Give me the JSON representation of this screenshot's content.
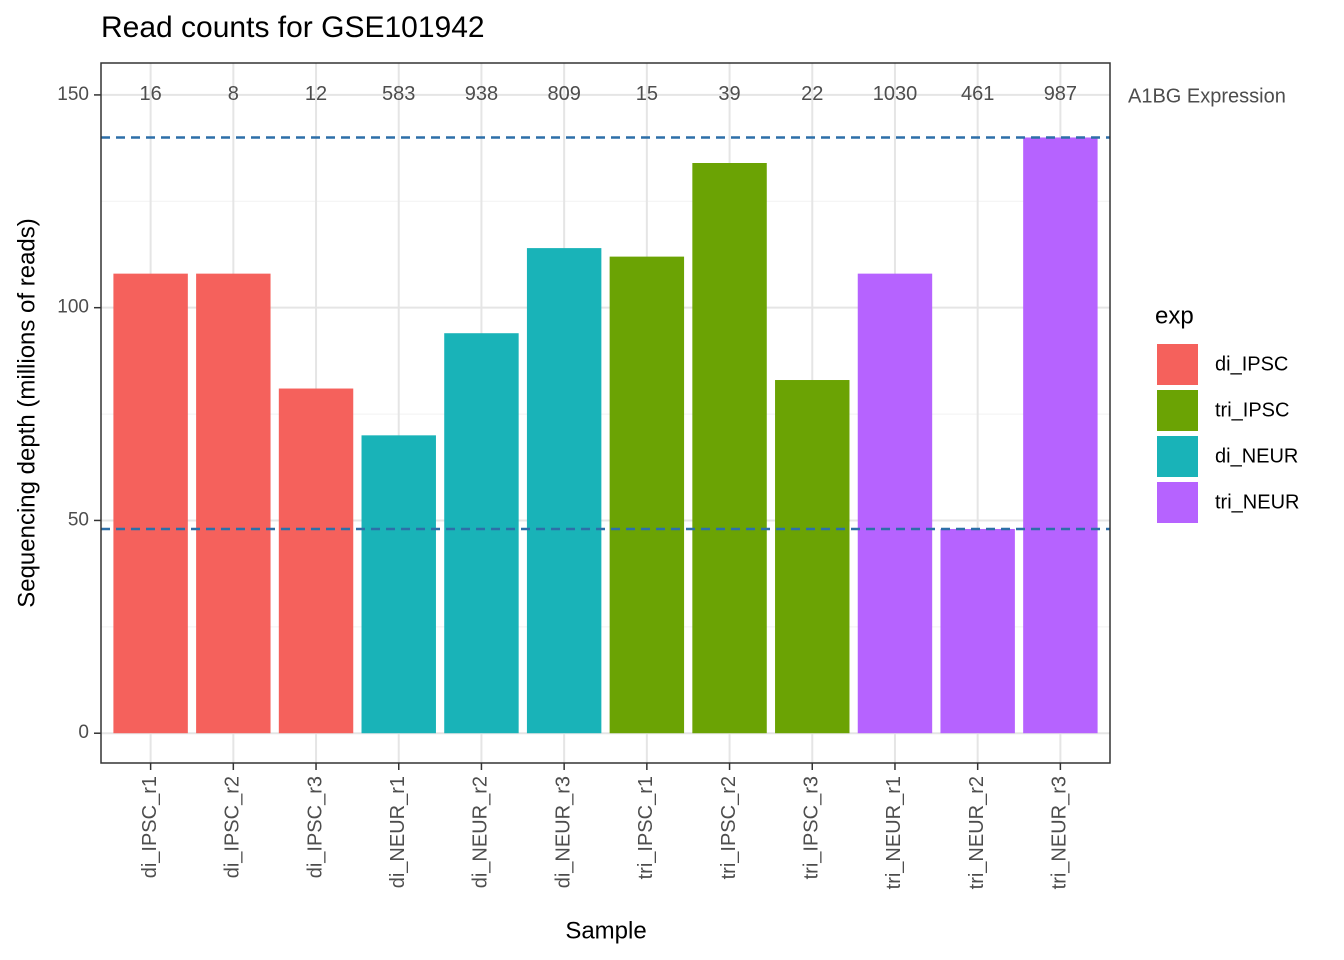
{
  "chart_data": {
    "type": "bar",
    "title": "Read counts for GSE101942",
    "x_label": "Sample",
    "y_label": "Sequencing depth (millions of reads)",
    "categories": [
      "di_IPSC_r1",
      "di_IPSC_r2",
      "di_IPSC_r3",
      "di_NEUR_r1",
      "di_NEUR_r2",
      "di_NEUR_r3",
      "tri_IPSC_r1",
      "tri_IPSC_r2",
      "tri_IPSC_r3",
      "tri_NEUR_r1",
      "tri_NEUR_r2",
      "tri_NEUR_r3"
    ],
    "legend_title": "exp",
    "series": [
      {
        "name": "di_IPSC",
        "color": "#f5615c",
        "values": [
          108,
          108,
          81,
          null,
          null,
          null,
          null,
          null,
          null,
          null,
          null,
          null
        ]
      },
      {
        "name": "tri_IPSC",
        "color": "#6ba304",
        "values": [
          null,
          null,
          null,
          null,
          null,
          null,
          112,
          134,
          83,
          null,
          null,
          null
        ]
      },
      {
        "name": "di_NEUR",
        "color": "#19b3b8",
        "values": [
          null,
          null,
          null,
          70,
          94,
          114,
          null,
          null,
          null,
          null,
          null,
          null
        ]
      },
      {
        "name": "tri_NEUR",
        "color": "#b663ff",
        "values": [
          null,
          null,
          null,
          null,
          null,
          null,
          null,
          null,
          null,
          108,
          48,
          140
        ]
      }
    ],
    "annotation_label": "A1BG Expression",
    "annotation_values": [
      16,
      8,
      12,
      583,
      938,
      809,
      15,
      39,
      22,
      1030,
      461,
      987
    ],
    "reference_lines": [
      140,
      48
    ],
    "reference_color": "#2d6fa8",
    "ylim": [
      -7,
      157.5
    ],
    "yticks": [
      0,
      50,
      100,
      150
    ],
    "yminor": [
      25,
      75,
      125
    ],
    "grid": true
  }
}
